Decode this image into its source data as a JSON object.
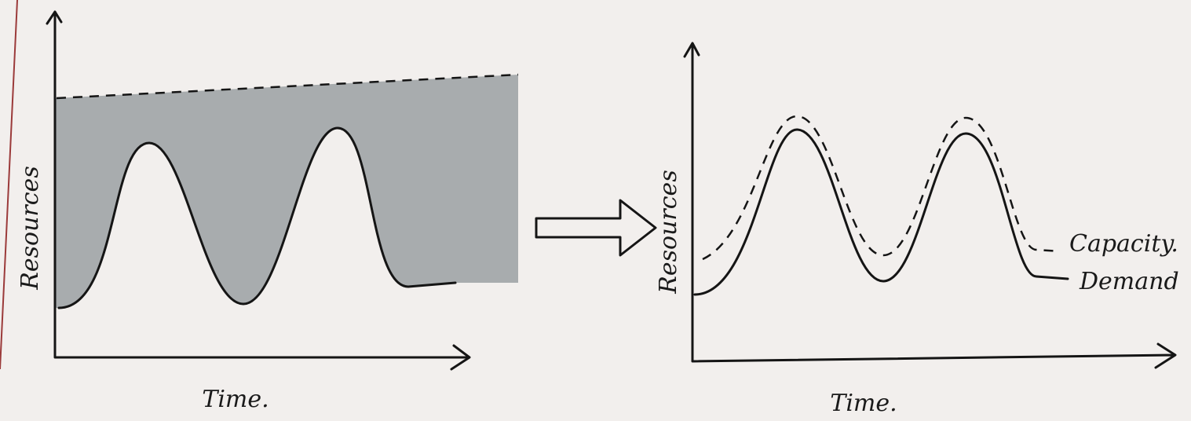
{
  "left_panel": {
    "y_label": "Resources",
    "x_label": "Time."
  },
  "right_panel": {
    "y_label": "Resources",
    "x_label": "Time.",
    "capacity_label": "Capacity.",
    "demand_label": "Demand"
  }
}
